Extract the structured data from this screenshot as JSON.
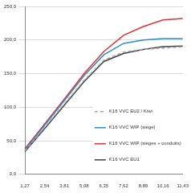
{
  "chart_data": {
    "type": "line",
    "categories": [
      "1,27",
      "2,54",
      "3,81",
      "5,08",
      "6,35",
      "7,62",
      "8,89",
      "10,16",
      "11,43"
    ],
    "series": [
      {
        "name": "K16 VVC EU2 / Kiwi",
        "color": "#a6a6a6",
        "line_style": "dashed",
        "values": [
          35,
          70,
          105,
          140,
          170,
          182,
          186,
          188,
          190
        ]
      },
      {
        "name": "K16 VVC WIP (siège)",
        "color": "#2e8bcc",
        "line_style": "solid",
        "values": [
          36,
          73,
          110,
          147,
          178,
          195,
          200,
          202,
          202
        ]
      },
      {
        "name": "K16 VVC WIP (sièges + conduits)",
        "color": "#e0303a",
        "line_style": "solid",
        "values": [
          38,
          75,
          112,
          150,
          183,
          207,
          220,
          230,
          232
        ]
      },
      {
        "name": "K16 VVC EU1",
        "color": "#404040",
        "line_style": "solid",
        "values": [
          34,
          68,
          103,
          138,
          168,
          180,
          186,
          190,
          191
        ]
      }
    ],
    "ylim": [
      0,
      250
    ],
    "yticks": [
      {
        "value": 0,
        "label": "0,0"
      },
      {
        "value": 50,
        "label": "50,0"
      },
      {
        "value": 100,
        "label": "100,0"
      },
      {
        "value": 150,
        "label": "150,0"
      },
      {
        "value": 200,
        "label": "200,0"
      },
      {
        "value": 250,
        "label": "250,0"
      }
    ],
    "grid": true,
    "legend": "lower right"
  }
}
